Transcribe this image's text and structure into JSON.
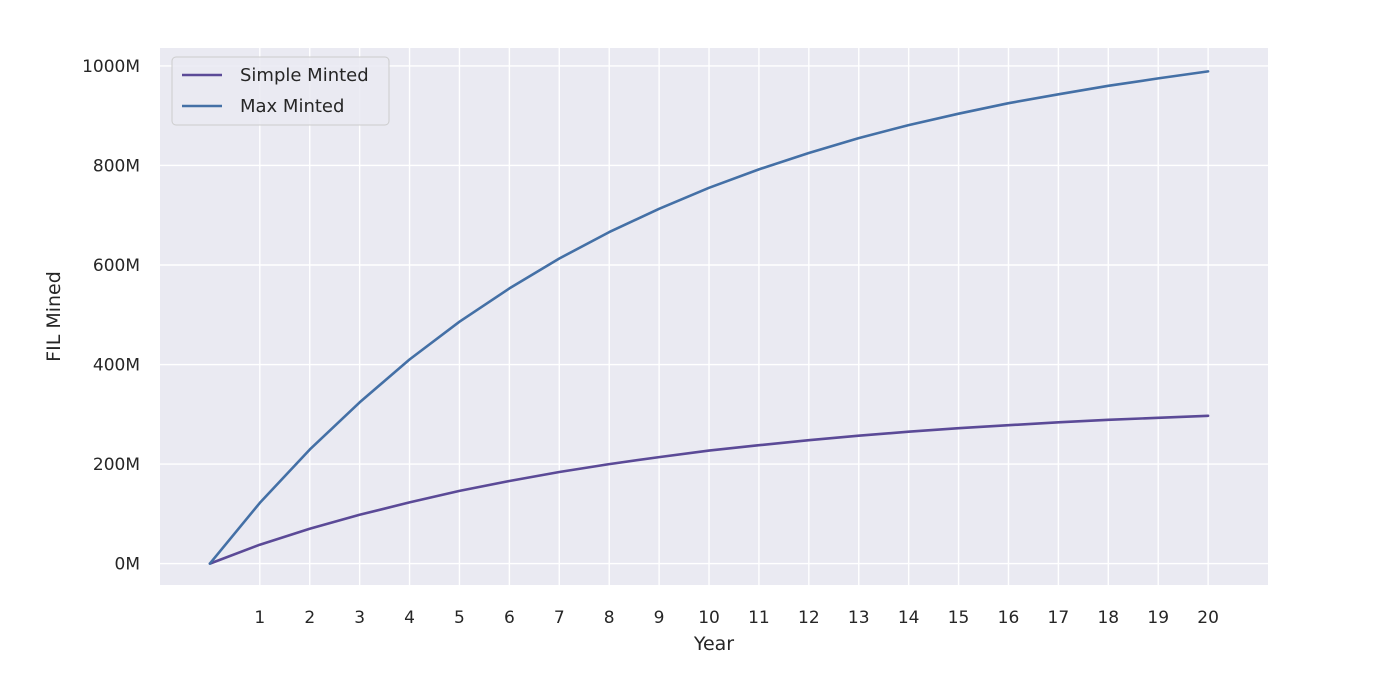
{
  "chart_data": {
    "type": "line",
    "title": "",
    "xlabel": "Year",
    "ylabel": "FIL Mined",
    "xlim": [
      -1,
      21.2
    ],
    "ylim": [
      -43,
      1036
    ],
    "x_ticks": [
      1,
      2,
      3,
      4,
      5,
      6,
      7,
      8,
      9,
      10,
      11,
      12,
      13,
      14,
      15,
      16,
      17,
      18,
      19,
      20
    ],
    "x_tick_labels": [
      "1",
      "2",
      "3",
      "4",
      "5",
      "6",
      "7",
      "8",
      "9",
      "10",
      "11",
      "12",
      "13",
      "14",
      "15",
      "16",
      "17",
      "18",
      "19",
      "20"
    ],
    "y_ticks": [
      0,
      200,
      400,
      600,
      800,
      1000
    ],
    "y_tick_labels": [
      "0M",
      "200M",
      "400M",
      "600M",
      "800M",
      "1000M"
    ],
    "grid": true,
    "legend_position": "top-left",
    "background_color": "#eaeaf2",
    "grid_color": "#ffffff",
    "x": [
      0,
      1,
      2,
      3,
      4,
      5,
      6,
      7,
      8,
      9,
      10,
      11,
      12,
      13,
      14,
      15,
      16,
      17,
      18,
      19,
      20
    ],
    "series": [
      {
        "name": "Simple Minted",
        "color": "#5b4a97",
        "values": [
          0,
          38,
          70,
          98,
          123,
          146,
          166,
          184,
          200,
          214,
          227,
          238,
          248,
          257,
          265,
          272,
          278,
          284,
          289,
          293,
          297
        ]
      },
      {
        "name": "Max Minted",
        "color": "#4470a6",
        "values": [
          0,
          122,
          229,
          324,
          410,
          486,
          553,
          613,
          666,
          713,
          755,
          792,
          825,
          855,
          881,
          904,
          925,
          943,
          960,
          975,
          989
        ]
      }
    ]
  }
}
